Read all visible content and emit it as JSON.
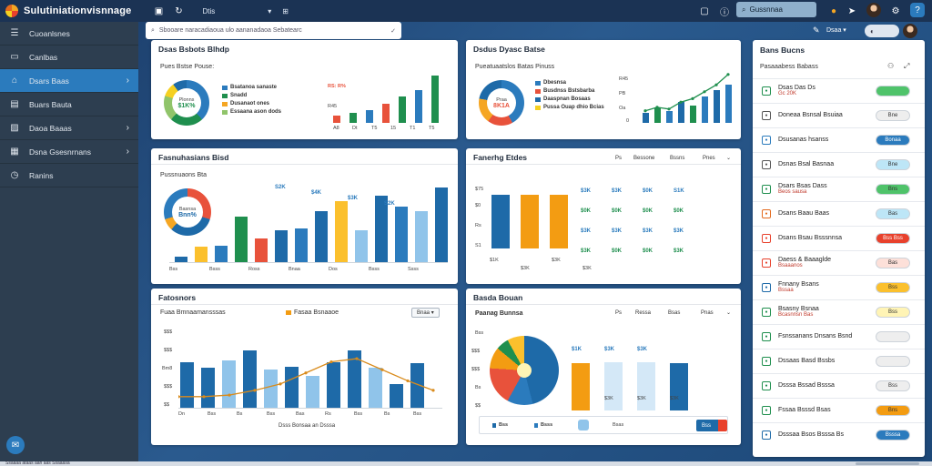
{
  "app": {
    "title": "Sulutiniationvisnnage"
  },
  "topbar": {
    "links": [
      "Dtis",
      "▾",
      "⊞"
    ],
    "search_placeholder": "Gussnnaa"
  },
  "sidebar": {
    "items": [
      {
        "label": "Cuoanlsnes",
        "icon": "menu-icon"
      },
      {
        "label": "Canlbas",
        "icon": "folder-icon"
      },
      {
        "label": "Dsars Baas",
        "icon": "home-icon",
        "active": true
      },
      {
        "label": "Buars Bauta",
        "icon": "table-icon"
      },
      {
        "label": "Daoa Baaas",
        "icon": "image-icon"
      },
      {
        "label": "Dsna Gsesnrnans",
        "icon": "calendar-icon"
      },
      {
        "label": "Ranins",
        "icon": "clock-icon"
      }
    ]
  },
  "main_search": {
    "value": "Sbooare naracadiaoua ulo aananadaoa Sebatearc"
  },
  "panels": {
    "p1": {
      "title": "Dsas Bsbots Blhdp",
      "subtitle": "Pues Bstse Pouse:",
      "donut_label": "Plonns",
      "donut_value": "$1K%",
      "legend": [
        "Bsatanoa sanaste",
        "Snadd",
        "Dusanaot ones",
        "Essaana ason dods"
      ],
      "ylabels": [
        "RS: R%",
        "R45"
      ],
      "xlabels": [
        "A8",
        "Dt",
        "T5",
        "15",
        "T1",
        "T5"
      ],
      "bars": [
        {
          "value": 8,
          "color": "#e8523b"
        },
        {
          "value": 12,
          "color": "#1f8f4e"
        },
        {
          "value": 15,
          "color": "#2b7bbd"
        },
        {
          "value": 22,
          "color": "#e8523b"
        },
        {
          "value": 30,
          "color": "#1f8f4e"
        },
        {
          "value": 38,
          "color": "#2b7bbd"
        },
        {
          "value": 55,
          "color": "#1f8f4e"
        }
      ]
    },
    "p2": {
      "title": "Dsdus Dyasc Batse",
      "subtitle": "Pueatuaatslos Batas Pinuss",
      "donut_label": "Praa",
      "donut_value": "8K1A",
      "legend": [
        "Dbesnsa",
        "Busdnss Bstsbarba",
        "Daaspnan Bosaas",
        "Pussa Ouap dhio Bcias"
      ],
      "ylabels": [
        "R45",
        "PB",
        "Oa",
        "0"
      ],
      "bars": [
        {
          "value": 12,
          "color": "#1e6aa8"
        },
        {
          "value": 18,
          "color": "#1f8f4e"
        },
        {
          "value": 14,
          "color": "#2b7bbd"
        },
        {
          "value": 24,
          "color": "#1e6aa8"
        },
        {
          "value": 20,
          "color": "#1f8f4e"
        },
        {
          "value": 30,
          "color": "#2b7bbd"
        },
        {
          "value": 38,
          "color": "#1e6aa8"
        },
        {
          "value": 44,
          "color": "#2b7bbd"
        }
      ],
      "line": [
        14,
        18,
        16,
        24,
        28,
        36,
        44,
        56
      ]
    },
    "p3": {
      "title": "Fasnuhasians Bisd",
      "subtitle": "Pussnuaons Bta",
      "donut_label": "Basnsa",
      "donut_value": "Bnn%",
      "xlabels": [
        "Bss",
        "Bsss",
        "Ross",
        "Bnaa",
        "Dos",
        "Bsss",
        "Ssss"
      ],
      "vlabels": [
        "S2K",
        "$4K",
        "$3K",
        "S2K"
      ],
      "bars": [
        {
          "value": 6,
          "color": "#1e6aa8"
        },
        {
          "value": 18,
          "color": "#fbc02d"
        },
        {
          "value": 19,
          "color": "#2b7bbd"
        },
        {
          "value": 54,
          "color": "#1f8f4e"
        },
        {
          "value": 28,
          "color": "#e8523b"
        },
        {
          "value": 38,
          "color": "#1e6aa8"
        },
        {
          "value": 40,
          "color": "#2b7bbd"
        },
        {
          "value": 60,
          "color": "#1e6aa8"
        },
        {
          "value": 72,
          "color": "#fbc02d"
        },
        {
          "value": 38,
          "color": "#90c4ea"
        },
        {
          "value": 78,
          "color": "#1e6aa8"
        },
        {
          "value": 66,
          "color": "#2b7bbd"
        },
        {
          "value": 60,
          "color": "#90c4ea"
        },
        {
          "value": 88,
          "color": "#1e6aa8"
        }
      ]
    },
    "p4": {
      "title": "Fanerhg Etdes",
      "cols": [
        "Ps",
        "Bessone",
        "Bssns",
        "Pnes"
      ],
      "ylabels": [
        "$75",
        "$0",
        "Rs",
        "S1"
      ],
      "rows": [
        [
          "$3K",
          "$3K",
          "$0K",
          "S1K"
        ],
        [
          "$0K",
          "$0K",
          "$0K",
          "$0K"
        ],
        [
          "$3K",
          "$3K",
          "$3K",
          "$3K"
        ],
        [
          "$3K",
          "$0K",
          "$0K",
          "$3K"
        ]
      ],
      "footer": [
        "$1K",
        "$3K",
        "$3K",
        "$3K"
      ],
      "bars": [
        {
          "value": 90,
          "color": "#1e6aa8"
        },
        {
          "value": 90,
          "color": "#f39c12"
        },
        {
          "value": 90,
          "color": "#f39c12"
        }
      ]
    },
    "p5": {
      "title": "Fatosnors",
      "subtitle": "Fuaa Bmnaamansssas",
      "legend": "Fasaa Bsnaaoe",
      "dropdown": "Bnaa",
      "ylabels": [
        "$$$",
        "$$$",
        "Bm8",
        "$$$",
        "$$"
      ],
      "xlabels": [
        "Dn",
        "Bss",
        "Bs",
        "Bss",
        "Bas",
        "Rs",
        "Bss",
        "Bs",
        "Bss"
      ],
      "xcaption": "Dsss Bonsaa an Dsssa",
      "bars": [
        {
          "value": 58,
          "color": "#1e6aa8"
        },
        {
          "value": 50,
          "color": "#1e6aa8"
        },
        {
          "value": 60,
          "color": "#90c4ea"
        },
        {
          "value": 72,
          "color": "#1e6aa8"
        },
        {
          "value": 48,
          "color": "#90c4ea"
        },
        {
          "value": 52,
          "color": "#1e6aa8"
        },
        {
          "value": 40,
          "color": "#90c4ea"
        },
        {
          "value": 58,
          "color": "#1e6aa8"
        },
        {
          "value": 72,
          "color": "#1e6aa8"
        },
        {
          "value": 50,
          "color": "#90c4ea"
        },
        {
          "value": 30,
          "color": "#1e6aa8"
        },
        {
          "value": 56,
          "color": "#1e6aa8"
        }
      ],
      "line": [
        14,
        14,
        16,
        22,
        30,
        44,
        58,
        62,
        48,
        34,
        22
      ]
    },
    "p6": {
      "title": "Basda Bouan",
      "subtitle": "Paanag Bunnsa",
      "cols": [
        "Ps",
        "Ressa",
        "Bsas",
        "Pnas"
      ],
      "ylabels": [
        "Bss",
        "$$$",
        "$$$",
        "Bs",
        "$$"
      ],
      "vlabels": [
        "$1K",
        "$3K",
        "$3K"
      ],
      "footer": [
        "$3K",
        "$3K",
        "$3K"
      ],
      "chips": [
        "Bss",
        "Bsss",
        "Bsas"
      ],
      "button_label": "Bss",
      "bars": [
        {
          "value": 70,
          "color": "#f39c12"
        },
        {
          "value": 72,
          "color": "#d4e8f7"
        },
        {
          "value": 72,
          "color": "#d4e8f7"
        },
        {
          "value": 70,
          "color": "#1e6aa8"
        }
      ]
    }
  },
  "right_panel": {
    "title": "Bans Bucns",
    "subtitle": "Pasaaabess Babass",
    "rows": [
      {
        "label": "Dsas Das Ds",
        "sub": "Gc 20K",
        "icon_color": "#1f8f4e",
        "pill": "",
        "pill_bg": "#4fc36a"
      },
      {
        "label": "Doneaa Bsnsal Bsuiaa",
        "sub": "",
        "icon_color": "#555",
        "pill": "Bne",
        "pill_bg": "#eeeeee"
      },
      {
        "label": "Dsusanas hsanss",
        "sub": "",
        "icon_color": "#2b7bbd",
        "pill": "Bonaa",
        "pill_bg": "#2b7bbd"
      },
      {
        "label": "Dsnas Bsal Basnaa",
        "sub": "",
        "icon_color": "#555",
        "pill": "Bne",
        "pill_bg": "#bde6f7"
      },
      {
        "label": "Dsars Bsas Dass",
        "sub": "Beos sausa",
        "icon_color": "#1f8f4e",
        "pill": "Bns",
        "pill_bg": "#4fc36a"
      },
      {
        "label": "Dsans Baau Baas",
        "sub": "",
        "icon_color": "#e36a1e",
        "pill": "Bas",
        "pill_bg": "#bde6f7"
      },
      {
        "label": "Dsans Bsau Bsssnnsa",
        "sub": "",
        "icon_color": "#e8412c",
        "pill": "Bss Bss",
        "pill_bg": "#e8412c"
      },
      {
        "label": "Daess & Baaaglde",
        "sub": "Bsaaanos",
        "icon_color": "#e8412c",
        "pill": "Bas",
        "pill_bg": "#fde0d9"
      },
      {
        "label": "Fnnany Bsans",
        "sub": "Bssaa",
        "icon_color": "#1e6aa8",
        "pill": "Bss",
        "pill_bg": "#fbc02d"
      },
      {
        "label": "Bsasny Bsnaa",
        "sub": "Bcasnnsn Bas",
        "icon_color": "#1f8f4e",
        "pill": "Bss",
        "pill_bg": "#fff4b5"
      },
      {
        "label": "Fsnssanans Dnsans Bsnd",
        "sub": "",
        "icon_color": "#1f8f4e",
        "pill": "",
        "pill_bg": "#eeeeee"
      },
      {
        "label": "Dssaas Basd Bssbs",
        "sub": "",
        "icon_color": "#1f8f4e",
        "pill": "",
        "pill_bg": "#eeeeee"
      },
      {
        "label": "Dsssa Bssad Bsssa",
        "sub": "",
        "icon_color": "#1f8f4e",
        "pill": "Bss",
        "pill_bg": "#eeeeee"
      },
      {
        "label": "Fssaa Bsssd Bsas",
        "sub": "",
        "icon_color": "#1f8f4e",
        "pill": "Bns",
        "pill_bg": "#f39c12"
      },
      {
        "label": "Dsssaa Bsos Bsssa Bs",
        "sub": "",
        "icon_color": "#1e6aa8",
        "pill": "Bsssa",
        "pill_bg": "#2b7bbd"
      }
    ]
  },
  "status": {
    "text": "Ssaaaa ataas aan aas Ssaaasa"
  }
}
